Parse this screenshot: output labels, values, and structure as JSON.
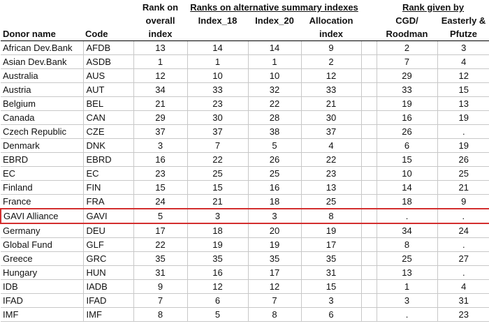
{
  "header": {
    "donor": "Donor name",
    "code": "Code",
    "rank_overall": [
      "Rank on",
      "overall",
      "index"
    ],
    "alt_group": "Ranks on alternative summary indexes",
    "index18": "Index_18",
    "index20": "Index_20",
    "allocation": [
      "Allocation",
      "index"
    ],
    "given_group": "Rank given by",
    "cgd": [
      "CGD/",
      "Roodman"
    ],
    "ep": [
      "Easterly &",
      "Pfutze"
    ]
  },
  "rows": [
    {
      "name": "African Dev.Bank",
      "code": "AFDB",
      "overall": "13",
      "i18": "14",
      "i20": "14",
      "alloc": "9",
      "cgd": "2",
      "ep": "3"
    },
    {
      "name": "Asian Dev.Bank",
      "code": "ASDB",
      "overall": "1",
      "i18": "1",
      "i20": "1",
      "alloc": "2",
      "cgd": "7",
      "ep": "4"
    },
    {
      "name": "Australia",
      "code": "AUS",
      "overall": "12",
      "i18": "10",
      "i20": "10",
      "alloc": "12",
      "cgd": "29",
      "ep": "12"
    },
    {
      "name": "Austria",
      "code": "AUT",
      "overall": "34",
      "i18": "33",
      "i20": "32",
      "alloc": "33",
      "cgd": "33",
      "ep": "15"
    },
    {
      "name": "Belgium",
      "code": "BEL",
      "overall": "21",
      "i18": "23",
      "i20": "22",
      "alloc": "21",
      "cgd": "19",
      "ep": "13"
    },
    {
      "name": "Canada",
      "code": "CAN",
      "overall": "29",
      "i18": "30",
      "i20": "28",
      "alloc": "30",
      "cgd": "16",
      "ep": "19"
    },
    {
      "name": "Czech Republic",
      "code": "CZE",
      "overall": "37",
      "i18": "37",
      "i20": "38",
      "alloc": "37",
      "cgd": "26",
      "ep": "."
    },
    {
      "name": "Denmark",
      "code": "DNK",
      "overall": "3",
      "i18": "7",
      "i20": "5",
      "alloc": "4",
      "cgd": "6",
      "ep": "19"
    },
    {
      "name": "EBRD",
      "code": "EBRD",
      "overall": "16",
      "i18": "22",
      "i20": "26",
      "alloc": "22",
      "cgd": "15",
      "ep": "26"
    },
    {
      "name": "EC",
      "code": "EC",
      "overall": "23",
      "i18": "25",
      "i20": "25",
      "alloc": "23",
      "cgd": "10",
      "ep": "25"
    },
    {
      "name": "Finland",
      "code": "FIN",
      "overall": "15",
      "i18": "15",
      "i20": "16",
      "alloc": "13",
      "cgd": "14",
      "ep": "21"
    },
    {
      "name": "France",
      "code": "FRA",
      "overall": "24",
      "i18": "21",
      "i20": "18",
      "alloc": "25",
      "cgd": "18",
      "ep": "9"
    },
    {
      "name": "GAVI Alliance",
      "code": "GAVI",
      "overall": "5",
      "i18": "3",
      "i20": "3",
      "alloc": "8",
      "cgd": ".",
      "ep": ".",
      "highlight": true
    },
    {
      "name": "Germany",
      "code": "DEU",
      "overall": "17",
      "i18": "18",
      "i20": "20",
      "alloc": "19",
      "cgd": "34",
      "ep": "24"
    },
    {
      "name": "Global Fund",
      "code": "GLF",
      "overall": "22",
      "i18": "19",
      "i20": "19",
      "alloc": "17",
      "cgd": "8",
      "ep": "."
    },
    {
      "name": "Greece",
      "code": "GRC",
      "overall": "35",
      "i18": "35",
      "i20": "35",
      "alloc": "35",
      "cgd": "25",
      "ep": "27"
    },
    {
      "name": "Hungary",
      "code": "HUN",
      "overall": "31",
      "i18": "16",
      "i20": "17",
      "alloc": "31",
      "cgd": "13",
      "ep": "."
    },
    {
      "name": "IDB",
      "code": "IADB",
      "overall": "9",
      "i18": "12",
      "i20": "12",
      "alloc": "15",
      "cgd": "1",
      "ep": "4"
    },
    {
      "name": "IFAD",
      "code": "IFAD",
      "overall": "7",
      "i18": "6",
      "i20": "7",
      "alloc": "3",
      "cgd": "3",
      "ep": "31"
    },
    {
      "name": "IMF",
      "code": "IMF",
      "overall": "8",
      "i18": "5",
      "i20": "8",
      "alloc": "6",
      "cgd": ".",
      "ep": "23"
    }
  ]
}
